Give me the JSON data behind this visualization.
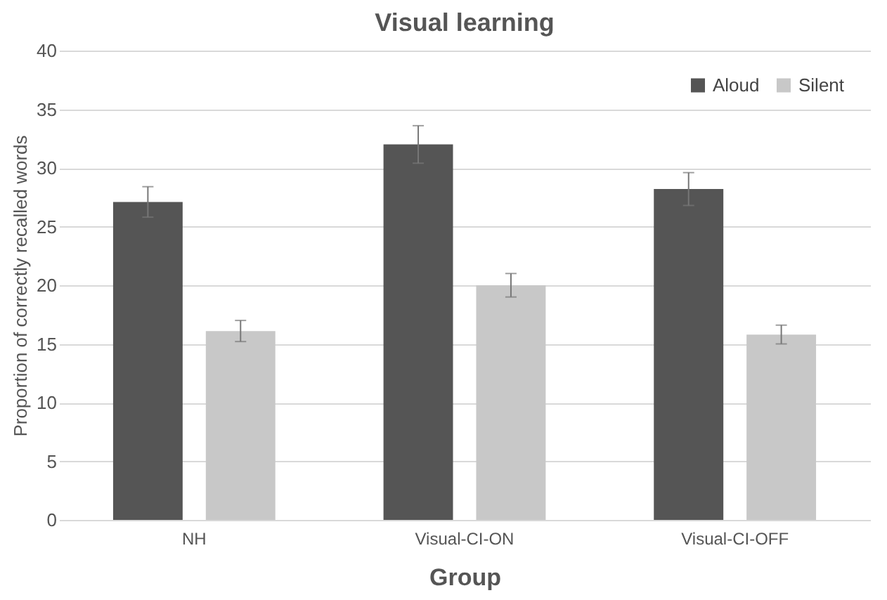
{
  "chart_data": {
    "type": "bar",
    "title": "Visual learning",
    "xlabel": "Group",
    "ylabel": "Proportion of correctly recalled words",
    "categories": [
      "NH",
      "Visual-CI-ON",
      "Visual-CI-OFF"
    ],
    "series": [
      {
        "name": "Aloud",
        "color": "#555555",
        "values": [
          27.1,
          32.0,
          28.2
        ],
        "errors": [
          1.3,
          1.6,
          1.4
        ]
      },
      {
        "name": "Silent",
        "color": "#c8c8c8",
        "values": [
          16.1,
          20.0,
          15.8
        ],
        "errors": [
          0.9,
          1.0,
          0.8
        ]
      }
    ],
    "ylim": [
      0,
      40
    ],
    "yticks": [
      0,
      5,
      10,
      15,
      20,
      25,
      30,
      35,
      40
    ],
    "grid": "y",
    "legend": "top right"
  }
}
